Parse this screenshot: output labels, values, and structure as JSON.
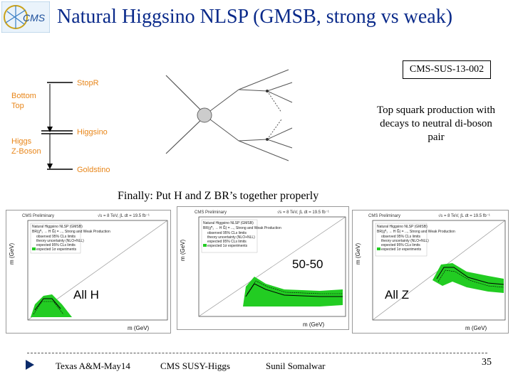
{
  "slide": {
    "title": "Natural Higgsino NLSP (GMSB, strong vs weak)",
    "reference": "CMS-SUS-13-002",
    "caption": "Top squark production with decays to neutral di-boson pair",
    "finally_text": "Finally: Put H and Z BR’s together properly",
    "page_number": "35"
  },
  "spectrum": {
    "left_top": [
      "Bottom",
      "Top"
    ],
    "left_bottom": [
      "Higgs",
      "Z-Boson"
    ],
    "right": [
      "StopR",
      "Higgsino",
      "Goldstino"
    ]
  },
  "plots": [
    {
      "header_left": "CMS Preliminary",
      "header_right": "√s = 8 TeV, ∫L dt = 19.5 fb⁻¹",
      "label": "All H"
    },
    {
      "header_left": "CMS Preliminary",
      "header_right": "√s = 8 TeV, ∫L dt = 19.5 fb⁻¹",
      "label": "50-50"
    },
    {
      "header_left": "CMS Preliminary",
      "header_right": "√s = 8 TeV, ∫L dt = 19.5 fb⁻¹",
      "label": "All Z"
    }
  ],
  "plot_legend": {
    "title": "Natural Higgsino NLSP (GMSB)",
    "lines": [
      "BR(χ̃⁰₁ → H G̃) = ..., Strong and Weak Production",
      "observed 95% CLs limits",
      "theory uncertainty (NLO+NLL)",
      "expected 95% CLs limits",
      "expected 1σ experiments"
    ]
  },
  "footer": {
    "items": [
      "Texas A&M-May14",
      "CMS SUSY-Higgs",
      "Sunil Somalwar"
    ]
  },
  "colors": {
    "title": "#0a2a8a",
    "spectrum_labels": "#e8861a",
    "band": "#22cc22"
  }
}
